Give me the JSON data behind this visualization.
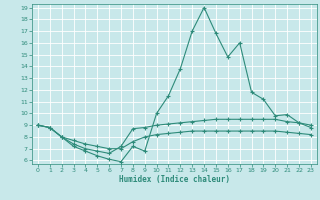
{
  "xlabel": "Humidex (Indice chaleur)",
  "x": [
    0,
    1,
    2,
    3,
    4,
    5,
    6,
    7,
    8,
    9,
    10,
    11,
    12,
    13,
    14,
    15,
    16,
    17,
    18,
    19,
    20,
    21,
    22,
    23
  ],
  "line1": [
    9.0,
    8.8,
    8.0,
    7.2,
    6.8,
    6.4,
    6.1,
    5.9,
    7.2,
    6.8,
    10.0,
    11.5,
    13.8,
    17.0,
    19.0,
    16.8,
    14.8,
    16.0,
    11.8,
    11.2,
    9.8,
    9.9,
    9.2,
    9.0
  ],
  "line2": [
    9.0,
    8.8,
    8.0,
    7.4,
    7.0,
    6.8,
    6.6,
    7.2,
    8.7,
    8.8,
    9.0,
    9.1,
    9.2,
    9.3,
    9.4,
    9.5,
    9.5,
    9.5,
    9.5,
    9.5,
    9.5,
    9.3,
    9.2,
    8.8
  ],
  "line3": [
    9.0,
    8.8,
    8.0,
    7.7,
    7.4,
    7.2,
    7.0,
    7.0,
    7.6,
    8.0,
    8.2,
    8.3,
    8.4,
    8.5,
    8.5,
    8.5,
    8.5,
    8.5,
    8.5,
    8.5,
    8.5,
    8.4,
    8.3,
    8.2
  ],
  "line_color": "#2e8b7a",
  "bg_color": "#c8e8ea",
  "grid_color": "#ffffff",
  "ylim": [
    6,
    19
  ],
  "xlim": [
    0,
    23
  ],
  "yticks": [
    6,
    7,
    8,
    9,
    10,
    11,
    12,
    13,
    14,
    15,
    16,
    17,
    18,
    19
  ],
  "xticks": [
    0,
    1,
    2,
    3,
    4,
    5,
    6,
    7,
    8,
    9,
    10,
    11,
    12,
    13,
    14,
    15,
    16,
    17,
    18,
    19,
    20,
    21,
    22,
    23
  ]
}
